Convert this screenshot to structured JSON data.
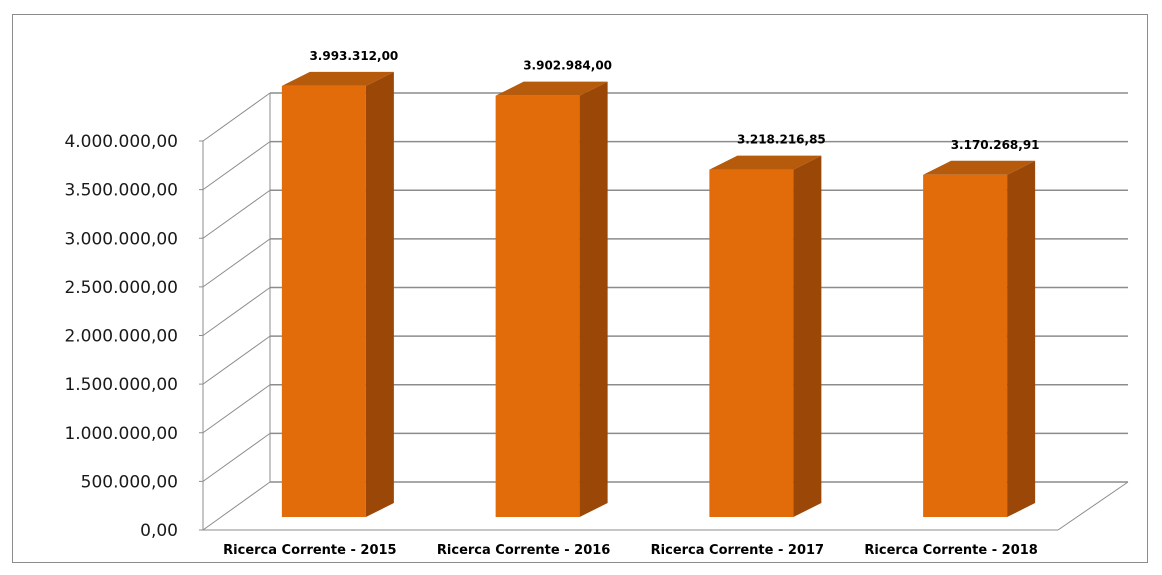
{
  "chart_data": {
    "type": "bar",
    "style": "3d-column",
    "categories": [
      "Ricerca Corrente - 2015",
      "Ricerca Corrente - 2016",
      "Ricerca Corrente - 2017",
      "Ricerca Corrente - 2018"
    ],
    "values": [
      3993312.0,
      3902984.0,
      3218216.85,
      3170268.91
    ],
    "data_labels": [
      "3.993.312,00",
      "3.902.984,00",
      "3.218.216,85",
      "3.170.268,91"
    ],
    "y_ticks": [
      "0,00",
      "500.000,00",
      "1.000.000,00",
      "1.500.000,00",
      "2.000.000,00",
      "2.500.000,00",
      "3.000.000,00",
      "3.500.000,00",
      "4.000.000,00"
    ],
    "ylim": [
      0,
      4000000
    ],
    "grid": true,
    "legend": "none",
    "colors": {
      "bar_front": "#e36c0a",
      "bar_side": "#9a4708",
      "bar_top": "#b65a0c",
      "grid": "#8c8c8c",
      "axis": "#8c8c8c"
    }
  }
}
